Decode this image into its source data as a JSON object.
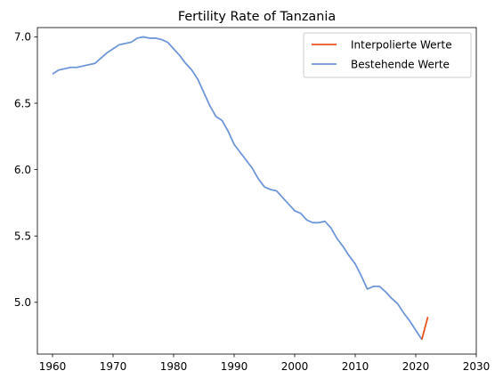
{
  "chart_data": {
    "type": "line",
    "title": "Fertility Rate of Tanzania",
    "xlabel": "",
    "ylabel": "",
    "xlim": [
      1957.5,
      2030
    ],
    "ylim": [
      4.61,
      7.07
    ],
    "x_ticks": [
      1960,
      1970,
      1980,
      1990,
      2000,
      2010,
      2020,
      2030
    ],
    "y_ticks": [
      5.0,
      5.5,
      6.0,
      6.5,
      7.0
    ],
    "grid": false,
    "legend_position": "top-right",
    "series": [
      {
        "name": "Interpolierte Werte",
        "color": "#e8531f",
        "x": [
          2021,
          2022
        ],
        "y": [
          4.72,
          4.89
        ]
      },
      {
        "name": "Bestehende Werte",
        "color": "#6f97d8",
        "x": [
          1960,
          1961,
          1962,
          1963,
          1964,
          1965,
          1966,
          1967,
          1968,
          1969,
          1970,
          1971,
          1972,
          1973,
          1974,
          1975,
          1976,
          1977,
          1978,
          1979,
          1980,
          1981,
          1982,
          1983,
          1984,
          1985,
          1986,
          1987,
          1988,
          1989,
          1990,
          1991,
          1992,
          1993,
          1994,
          1995,
          1996,
          1997,
          1998,
          1999,
          2000,
          2001,
          2002,
          2003,
          2004,
          2005,
          2006,
          2007,
          2008,
          2009,
          2010,
          2011,
          2012,
          2013,
          2014,
          2015,
          2016,
          2017,
          2018,
          2019,
          2020,
          2021
        ],
        "y": [
          6.72,
          6.75,
          6.76,
          6.77,
          6.77,
          6.78,
          6.79,
          6.8,
          6.84,
          6.88,
          6.91,
          6.94,
          6.95,
          6.96,
          6.99,
          7.0,
          6.99,
          6.99,
          6.98,
          6.96,
          6.91,
          6.86,
          6.8,
          6.75,
          6.68,
          6.58,
          6.48,
          6.4,
          6.37,
          6.29,
          6.19,
          6.13,
          6.07,
          6.01,
          5.93,
          5.87,
          5.85,
          5.84,
          5.79,
          5.74,
          5.69,
          5.67,
          5.62,
          5.6,
          5.6,
          5.61,
          5.56,
          5.48,
          5.42,
          5.35,
          5.29,
          5.2,
          5.1,
          5.12,
          5.12,
          5.08,
          5.03,
          4.99,
          4.92,
          4.86,
          4.79,
          4.72
        ]
      }
    ]
  }
}
